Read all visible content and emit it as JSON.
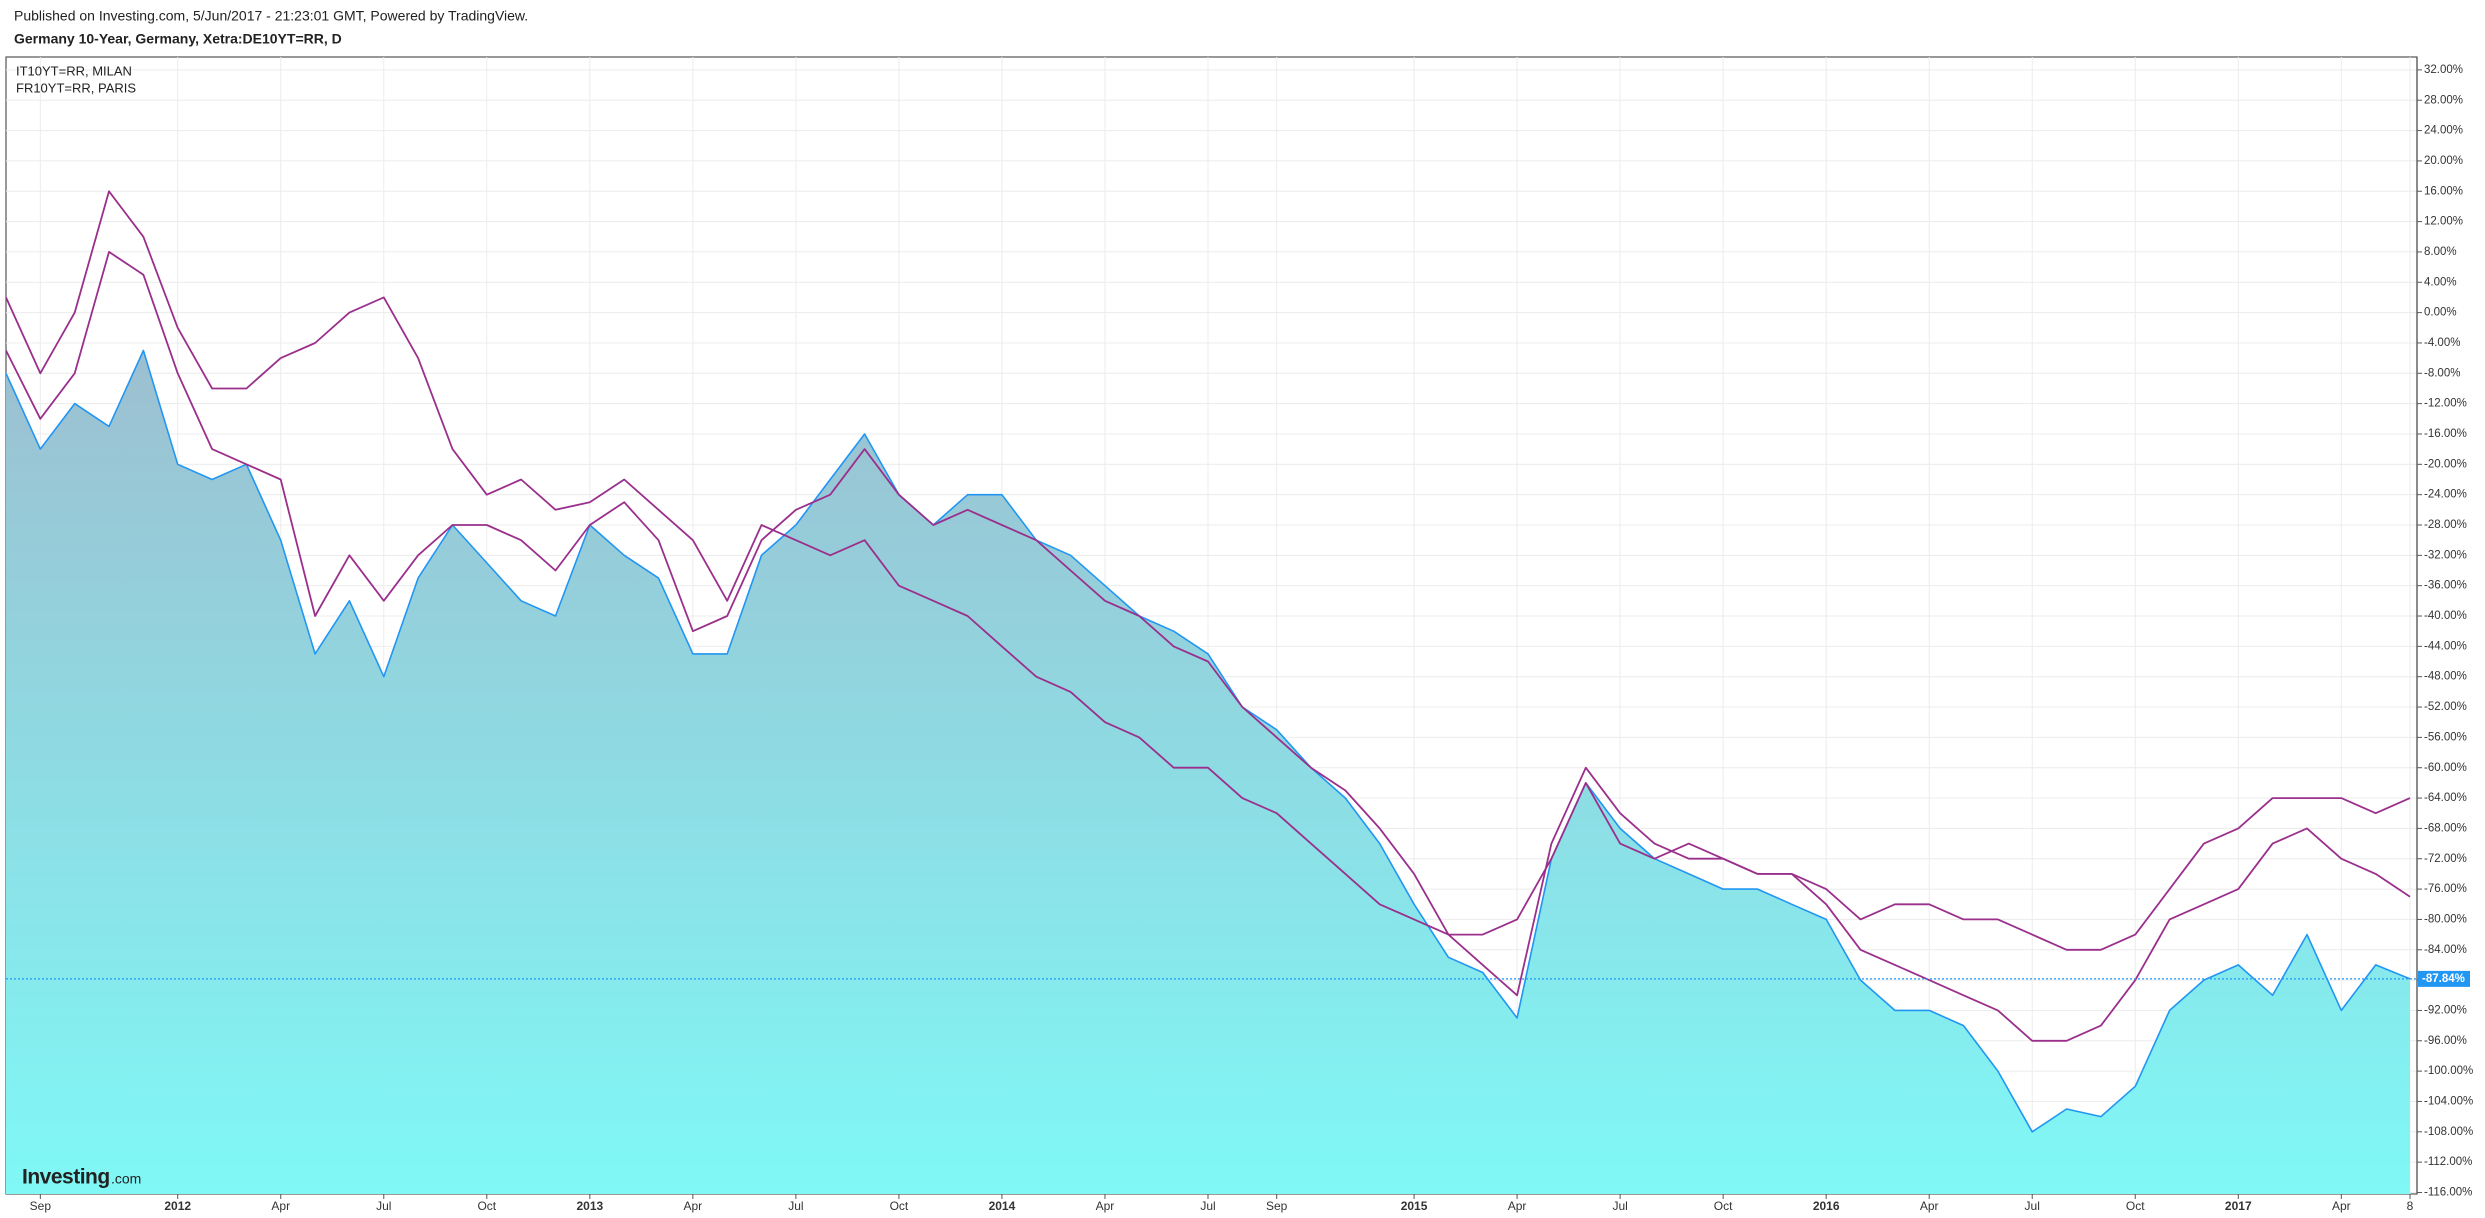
{
  "chart_data": {
    "type": "line",
    "subtitle": "Published on Investing.com, 5/Jun/2017 - 21:23:01 GMT, Powered by TradingView.",
    "title": "Germany 10-Year, Germany, Xetra:DE10YT=RR, D",
    "categories": [
      null,
      "Sep",
      null,
      null,
      null,
      "2012",
      null,
      null,
      "Apr",
      null,
      null,
      "Jul",
      null,
      null,
      "Oct",
      null,
      null,
      "2013",
      null,
      null,
      "Apr",
      null,
      null,
      "Jul",
      null,
      null,
      "Oct",
      null,
      null,
      "2014",
      null,
      null,
      "Apr",
      null,
      null,
      "Jul",
      null,
      "Sep",
      null,
      null,
      null,
      "2015",
      null,
      null,
      "Apr",
      null,
      null,
      "Jul",
      null,
      null,
      "Oct",
      null,
      null,
      "2016",
      null,
      null,
      "Apr",
      null,
      null,
      "Jul",
      null,
      null,
      "Oct",
      null,
      null,
      "2017",
      null,
      null,
      "Apr",
      null,
      "8"
    ],
    "year_categories": [
      "2012",
      "2013",
      "2014",
      "2015",
      "2016",
      "2017"
    ],
    "series": [
      {
        "values": [
          -8,
          -18,
          -12,
          -15,
          -5,
          -20,
          -22,
          -20,
          -30,
          -45,
          -38,
          -48,
          -35,
          -28,
          -33,
          -38,
          -40,
          -28,
          -32,
          -35,
          -45,
          -45,
          -32,
          -28,
          -22,
          -16,
          -24,
          -28,
          -24,
          -24,
          -30,
          -32,
          -36,
          -40,
          -42,
          -45,
          -52,
          -55,
          -60,
          -64,
          -70,
          -78,
          -85,
          -87,
          -93,
          -72,
          -62,
          -68,
          -72,
          -74,
          -76,
          -76,
          -78,
          -80,
          -88,
          -92,
          -92,
          -94,
          -100,
          -108,
          -105,
          -106,
          -102,
          -92,
          -88,
          -86,
          -90,
          -82,
          -92,
          -86,
          -87.84
        ],
        "color": "#2196f3",
        "fill_top": "#9dbfd0",
        "fill_bottom": "#7ff8f6"
      },
      {
        "name": "IT10YT=RR, MILAN",
        "color": "#9a2f8c",
        "values": [
          2,
          -8,
          0,
          16,
          10,
          -2,
          -10,
          -10,
          -6,
          -4,
          0,
          2,
          -6,
          -18,
          -24,
          -22,
          -26,
          -25,
          -22,
          -26,
          -30,
          -38,
          -28,
          -30,
          -32,
          -30,
          -36,
          -38,
          -40,
          -44,
          -48,
          -50,
          -54,
          -56,
          -60,
          -60,
          -64,
          -66,
          -70,
          -74,
          -78,
          -80,
          -82,
          -82,
          -80,
          -72,
          -62,
          -70,
          -72,
          -70,
          -72,
          -74,
          -74,
          -76,
          -80,
          -78,
          -78,
          -80,
          -80,
          -82,
          -84,
          -84,
          -82,
          -76,
          -70,
          -68,
          -64,
          -64,
          -64,
          -66,
          -64
        ]
      },
      {
        "name": "FR10YT=RR, PARIS",
        "color": "#9a2f8c",
        "values": [
          -5,
          -14,
          -8,
          8,
          5,
          -8,
          -18,
          -20,
          -22,
          -40,
          -32,
          -38,
          -32,
          -28,
          -28,
          -30,
          -34,
          -28,
          -25,
          -30,
          -42,
          -40,
          -30,
          -26,
          -24,
          -18,
          -24,
          -28,
          -26,
          -28,
          -30,
          -34,
          -38,
          -40,
          -44,
          -46,
          -52,
          -56,
          -60,
          -63,
          -68,
          -74,
          -82,
          -86,
          -90,
          -70,
          -60,
          -66,
          -70,
          -72,
          -72,
          -74,
          -74,
          -78,
          -84,
          -86,
          -88,
          -90,
          -92,
          -96,
          -96,
          -94,
          -88,
          -80,
          -78,
          -76,
          -70,
          -68,
          -72,
          -74,
          -77
        ]
      }
    ],
    "current": {
      "value": -87.84,
      "label": "-87.84%"
    },
    "legend": "top-left",
    "grid": true,
    "ylim": [
      -116.2,
      33.7
    ],
    "yticks": [
      {
        "value": 32,
        "label": "32.00%"
      },
      {
        "value": 28,
        "label": "28.00%"
      },
      {
        "value": 24,
        "label": "24.00%"
      },
      {
        "value": 20,
        "label": "20.00%"
      },
      {
        "value": 16,
        "label": "16.00%"
      },
      {
        "value": 12,
        "label": "12.00%"
      },
      {
        "value": 8,
        "label": "8.00%"
      },
      {
        "value": 4,
        "label": "4.00%"
      },
      {
        "value": 0,
        "label": "0.00%"
      },
      {
        "value": -4,
        "label": "-4.00%"
      },
      {
        "value": -8,
        "label": "-8.00%"
      },
      {
        "value": -12,
        "label": "-12.00%"
      },
      {
        "value": -16,
        "label": "-16.00%"
      },
      {
        "value": -20,
        "label": "-20.00%"
      },
      {
        "value": -24,
        "label": "-24.00%"
      },
      {
        "value": -28,
        "label": "-28.00%"
      },
      {
        "value": -32,
        "label": "-32.00%"
      },
      {
        "value": -36,
        "label": "-36.00%"
      },
      {
        "value": -40,
        "label": "-40.00%"
      },
      {
        "value": -44,
        "label": "-44.00%"
      },
      {
        "value": -48,
        "label": "-48.00%"
      },
      {
        "value": -52,
        "label": "-52.00%"
      },
      {
        "value": -56,
        "label": "-56.00%"
      },
      {
        "value": -60,
        "label": "-60.00%"
      },
      {
        "value": -64,
        "label": "-64.00%"
      },
      {
        "value": -68,
        "label": "-68.00%"
      },
      {
        "value": -72,
        "label": "-72.00%"
      },
      {
        "value": -76,
        "label": "-76.00%"
      },
      {
        "value": -80,
        "label": "-80.00%"
      },
      {
        "value": -84,
        "label": "-84.00%"
      },
      {
        "value": -88,
        "label": "-88.00%"
      },
      {
        "value": -92,
        "label": "-92.00%"
      },
      {
        "value": -96,
        "label": "-96.00%"
      },
      {
        "value": -100,
        "label": "-100.00%"
      },
      {
        "value": -104,
        "label": "-104.00%"
      },
      {
        "value": -108,
        "label": "-108.00%"
      },
      {
        "value": -112,
        "label": "-112.00%"
      },
      {
        "value": -116,
        "label": "-116.00%"
      }
    ],
    "watermark": {
      "brand": "Investing",
      "suffix": ".com"
    }
  }
}
